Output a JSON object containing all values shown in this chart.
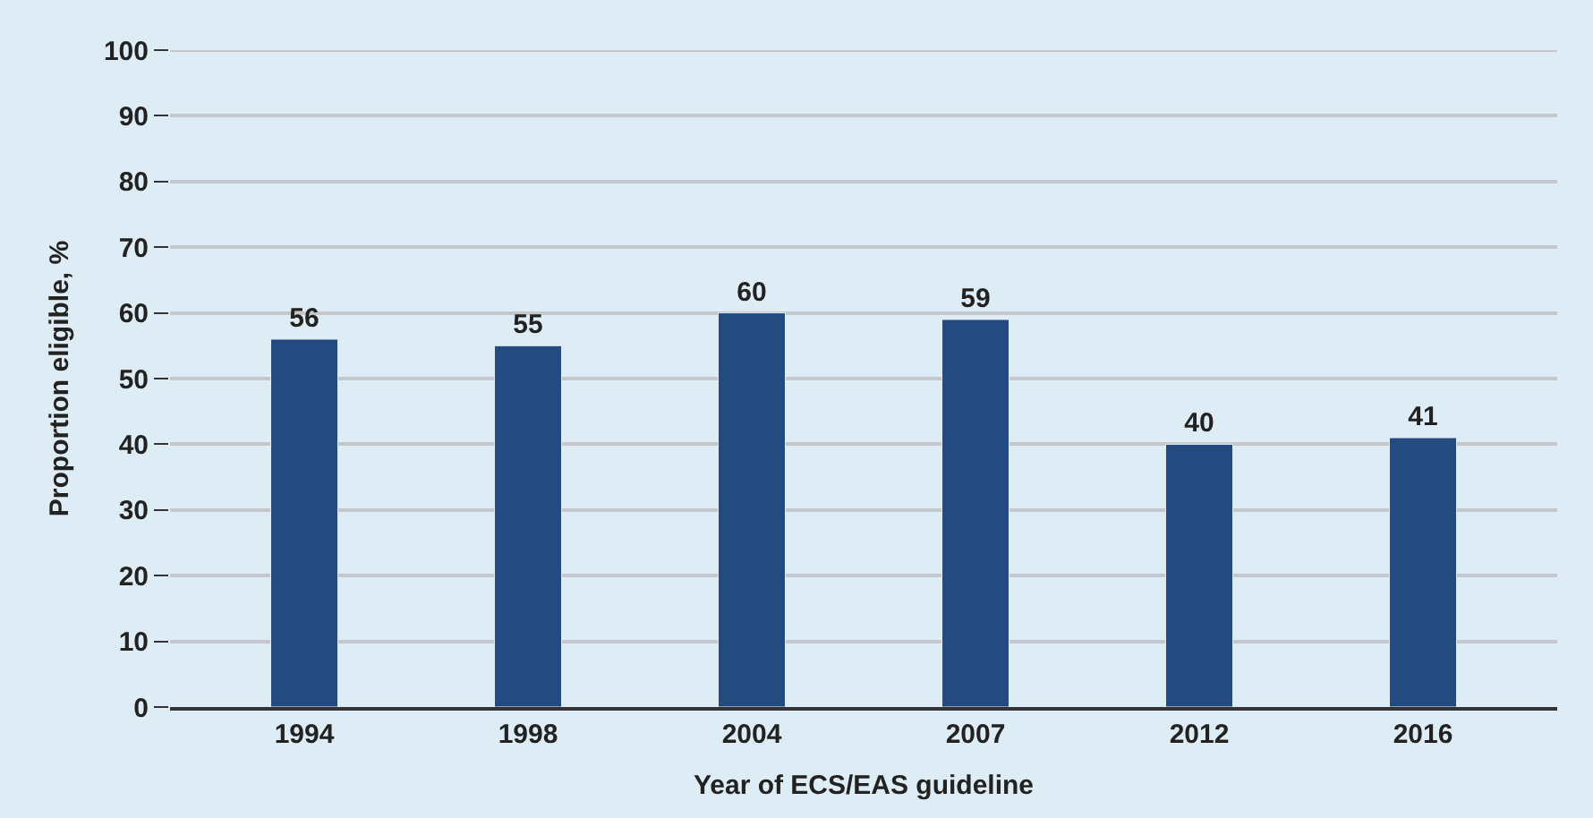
{
  "chart_data": {
    "type": "bar",
    "categories": [
      "1994",
      "1998",
      "2004",
      "2007",
      "2012",
      "2016"
    ],
    "values": [
      56,
      55,
      60,
      59,
      40,
      41
    ],
    "color": "#234b7f",
    "xlabel": "Year of ECS/EAS guideline",
    "ylabel": "Proportion eligible, %",
    "ylim": [
      0,
      100
    ],
    "yticks": [
      0,
      10,
      20,
      30,
      40,
      50,
      60,
      70,
      80,
      90,
      100
    ],
    "grid": "y",
    "data_labels": true
  }
}
